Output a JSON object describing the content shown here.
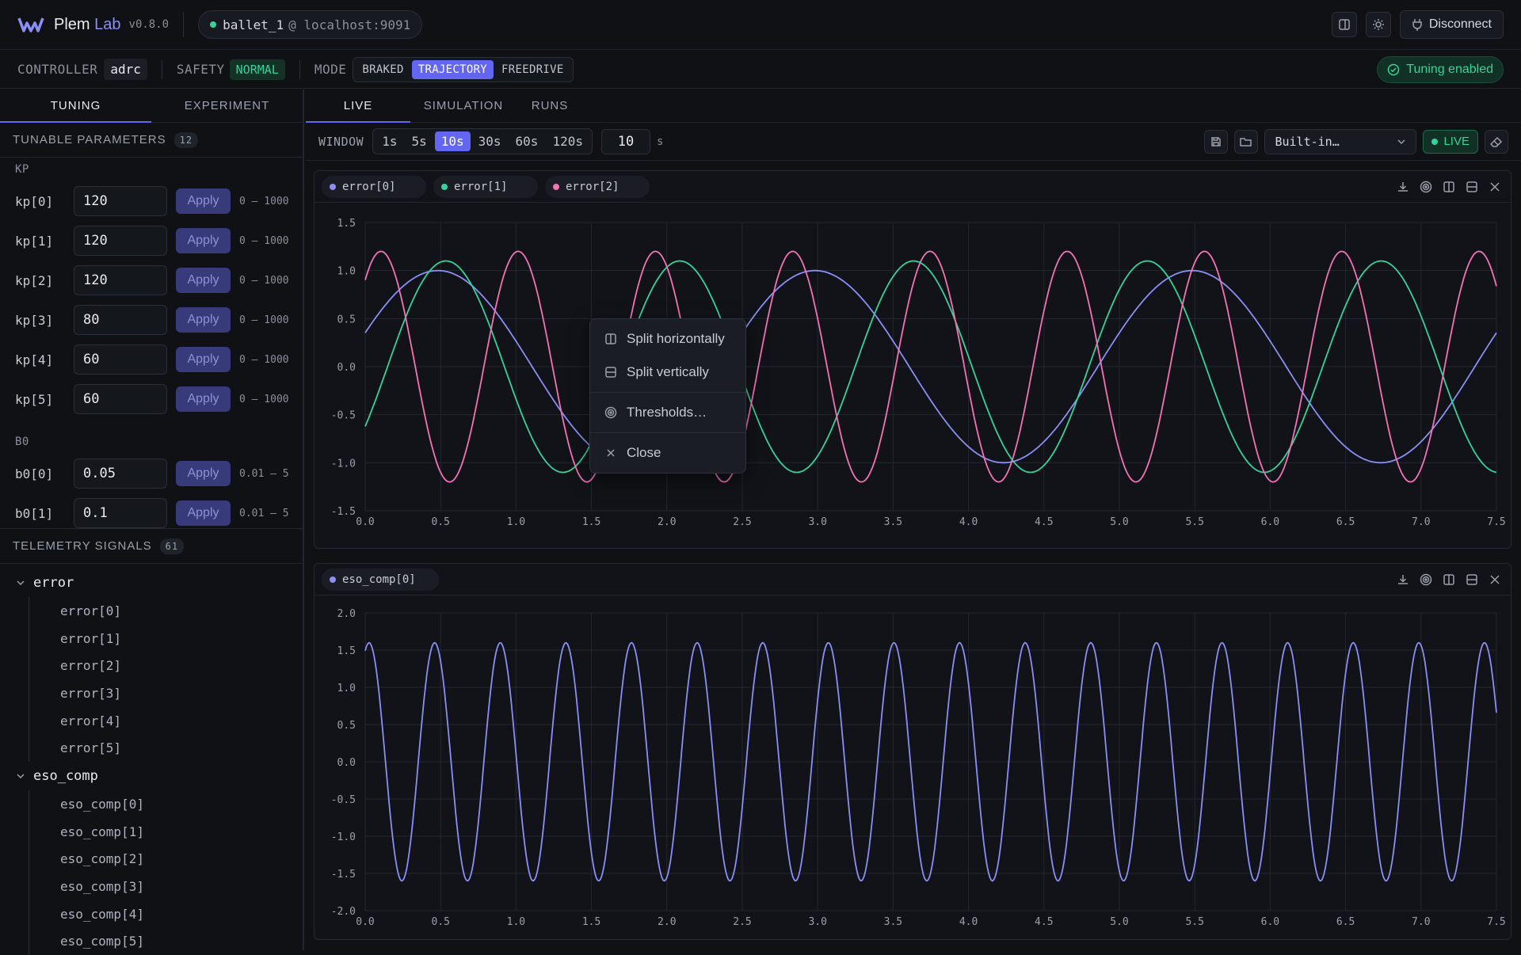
{
  "app": {
    "name_main": "Plem",
    "name_accent": "Lab",
    "version": "v0.8.0"
  },
  "connection": {
    "robot": "ballet_1",
    "host": "@ localhost:9091",
    "status_color": "#34d399"
  },
  "header": {
    "disconnect_label": "Disconnect",
    "icons": [
      "sidebar-toggle-icon",
      "sun-icon",
      "plug-icon"
    ]
  },
  "controller_bar": {
    "controller_label": "CONTROLLER",
    "controller_value": "adrc",
    "safety_label": "SAFETY",
    "safety_value": "NORMAL",
    "mode_label": "MODE",
    "modes": [
      "BRAKED",
      "TRAJECTORY",
      "FREEDRIVE"
    ],
    "active_mode": "TRAJECTORY",
    "tuning_status": "Tuning enabled"
  },
  "left_tabs": [
    "TUNING",
    "EXPERIMENT"
  ],
  "tunable": {
    "title": "TUNABLE PARAMETERS",
    "count": "12",
    "apply_label": "Apply",
    "groups": [
      {
        "label": "KP",
        "params": [
          {
            "name": "kp[0]",
            "value": "120",
            "range": "0 – 1000"
          },
          {
            "name": "kp[1]",
            "value": "120",
            "range": "0 – 1000"
          },
          {
            "name": "kp[2]",
            "value": "120",
            "range": "0 – 1000"
          },
          {
            "name": "kp[3]",
            "value": "80",
            "range": "0 – 1000"
          },
          {
            "name": "kp[4]",
            "value": "60",
            "range": "0 – 1000"
          },
          {
            "name": "kp[5]",
            "value": "60",
            "range": "0 – 1000"
          }
        ]
      },
      {
        "label": "B0",
        "params": [
          {
            "name": "b0[0]",
            "value": "0.05",
            "range": "0.01 – 5"
          },
          {
            "name": "b0[1]",
            "value": "0.1",
            "range": "0.01 – 5"
          }
        ]
      }
    ]
  },
  "telemetry": {
    "title": "TELEMETRY SIGNALS",
    "count": "61",
    "groups": [
      {
        "label": "error",
        "items": [
          "error[0]",
          "error[1]",
          "error[2]",
          "error[3]",
          "error[4]",
          "error[5]"
        ]
      },
      {
        "label": "eso_comp",
        "items": [
          "eso_comp[0]",
          "eso_comp[1]",
          "eso_comp[2]",
          "eso_comp[3]",
          "eso_comp[4]",
          "eso_comp[5]"
        ]
      }
    ]
  },
  "main_tabs": [
    "LIVE",
    "SIMULATION",
    "RUNS"
  ],
  "window_bar": {
    "label": "WINDOW",
    "options": [
      "1s",
      "5s",
      "10s",
      "30s",
      "60s",
      "120s"
    ],
    "active": "10s",
    "input_value": "10",
    "unit": "s",
    "preset": "Built-in…",
    "live_label": "LIVE"
  },
  "context_menu": {
    "items": [
      "Split horizontally",
      "Split vertically",
      "Thresholds…",
      "Close"
    ]
  },
  "chart_data": [
    {
      "type": "line",
      "title": "",
      "xlim": [
        0,
        7.5
      ],
      "ylim": [
        -1.5,
        1.5
      ],
      "xticks": [
        "0.0",
        "0.5",
        "1.0",
        "1.5",
        "2.0",
        "2.5",
        "3.0",
        "3.5",
        "4.0",
        "4.5",
        "5.0",
        "5.5",
        "6.0",
        "6.5",
        "7.0",
        "7.5"
      ],
      "yticks": [
        "1.5",
        "1.0",
        "0.5",
        "0.0",
        "-0.5",
        "-1.0",
        "-1.5"
      ],
      "grid": true,
      "series": [
        {
          "name": "error[0]",
          "color": "#8b8ff5",
          "amplitude": 1.0,
          "period_s": 2.5,
          "phase_rad": 0.36
        },
        {
          "name": "error[1]",
          "color": "#34d399",
          "amplitude": 1.1,
          "period_s": 1.55,
          "phase_rad": -0.6
        },
        {
          "name": "error[2]",
          "color": "#f472b6",
          "amplitude": 1.2,
          "period_s": 0.91,
          "phase_rad": 0.85
        }
      ]
    },
    {
      "type": "line",
      "title": "",
      "xlim": [
        0,
        7.5
      ],
      "ylim": [
        -2.0,
        2.0
      ],
      "xticks": [
        "0.0",
        "0.5",
        "1.0",
        "1.5",
        "2.0",
        "2.5",
        "3.0",
        "3.5",
        "4.0",
        "4.5",
        "5.0",
        "5.5",
        "6.0",
        "6.5",
        "7.0",
        "7.5"
      ],
      "yticks": [
        "2.0",
        "1.5",
        "1.0",
        "0.5",
        "0.0",
        "-0.5",
        "-1.0",
        "-1.5",
        "-2.0"
      ],
      "grid": true,
      "series": [
        {
          "name": "eso_comp[0]",
          "color": "#8b8ff5",
          "amplitude": 1.6,
          "period_s": 0.435,
          "phase_rad": 1.2
        }
      ]
    }
  ]
}
